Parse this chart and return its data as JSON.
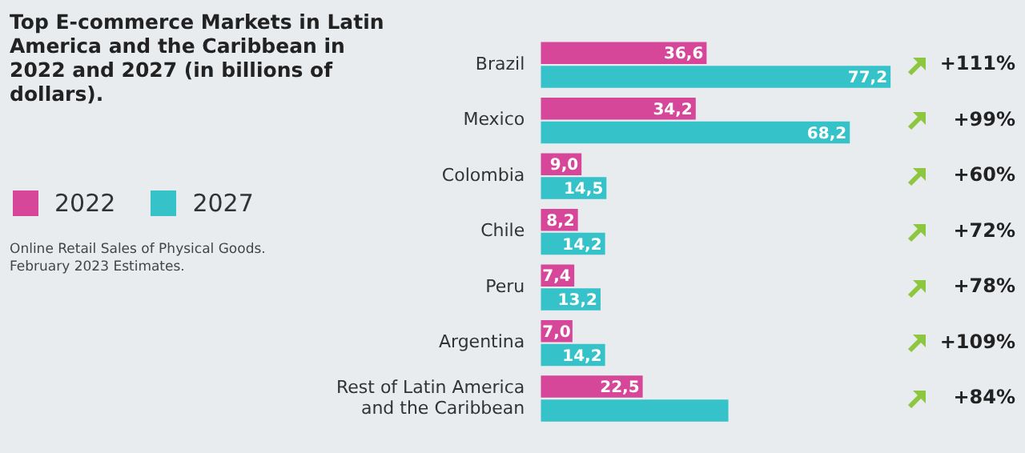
{
  "chart_data": {
    "type": "bar",
    "orientation": "horizontal",
    "title": "Top E-commerce Markets in Latin America and the Caribbean in 2022 and 2027 (in billions of dollars).",
    "categories": [
      "Brazil",
      "Mexico",
      "Colombia",
      "Chile",
      "Peru",
      "Argentina",
      "Rest of Latin America and the Caribbean"
    ],
    "series": [
      {
        "name": "2022",
        "color": "#d6479a",
        "values": [
          36.6,
          34.2,
          9.0,
          8.2,
          7.4,
          7.0,
          22.5
        ],
        "value_labels": [
          "36,6",
          "34,2",
          "9,0",
          "8,2",
          "7,4",
          "7,0",
          "22,5"
        ]
      },
      {
        "name": "2027",
        "color": "#35c2c9",
        "values": [
          77.2,
          68.2,
          14.5,
          14.2,
          13.2,
          14.2,
          41.4
        ],
        "value_labels": [
          "77,2",
          "68,2",
          "14,5",
          "14,2",
          "13,2",
          "14,2",
          null
        ]
      }
    ],
    "legend": "left",
    "grid": false,
    "annotations": [
      "+111%",
      "+99%",
      "+60%",
      "+72%",
      "+78%",
      "+109%",
      "+84%",
      "Online Retail Sales of Physical Goods. February 2023 Estimates."
    ]
  }
}
